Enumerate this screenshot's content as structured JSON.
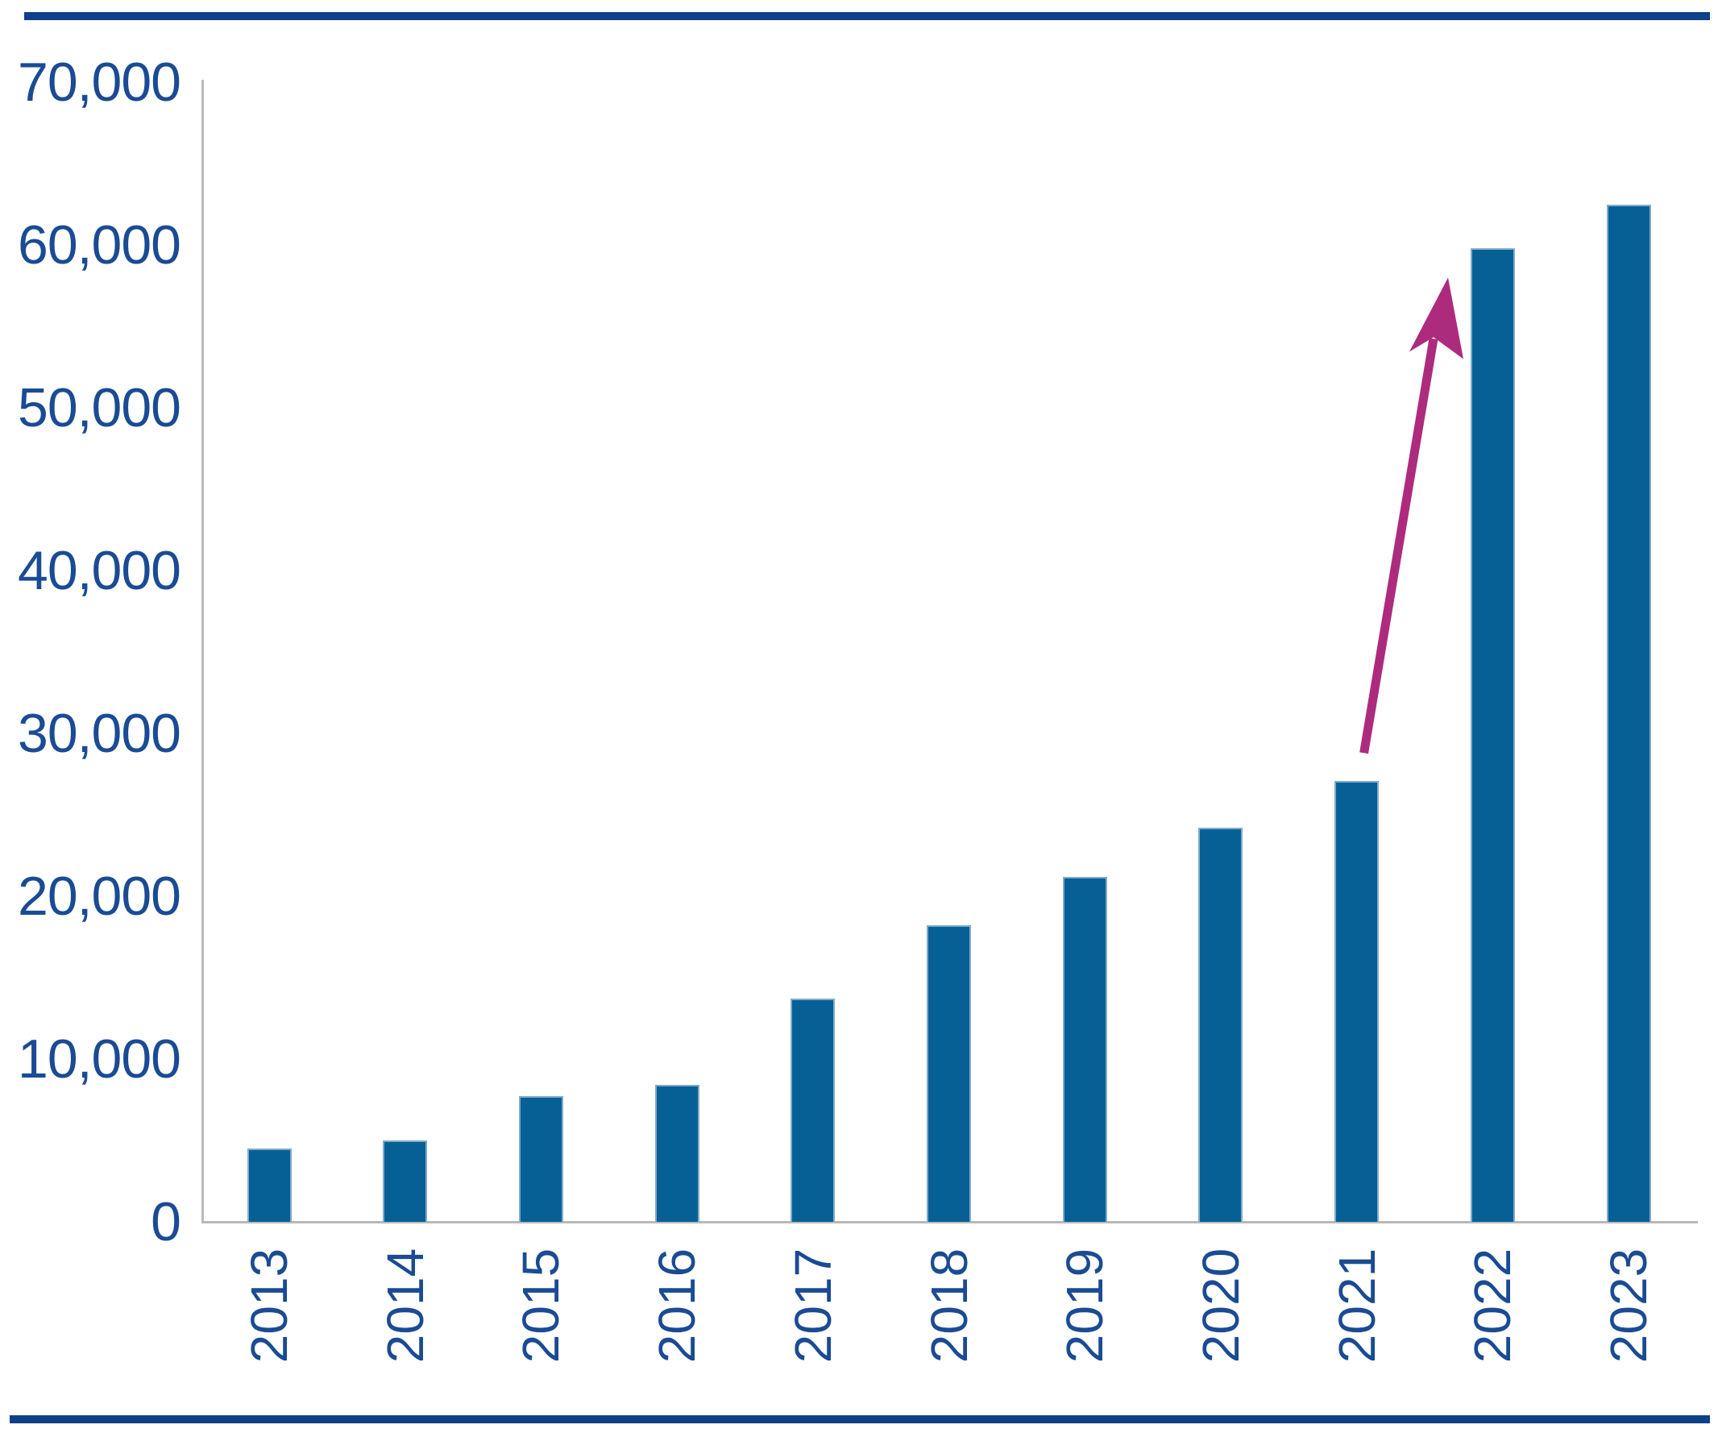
{
  "chart_data": {
    "type": "bar",
    "title": "",
    "xlabel": "",
    "ylabel": "",
    "categories": [
      "2013",
      "2014",
      "2015",
      "2016",
      "2017",
      "2018",
      "2019",
      "2020",
      "2021",
      "2022",
      "2023"
    ],
    "values": [
      4500,
      5000,
      7700,
      8400,
      13700,
      18200,
      21200,
      24200,
      27100,
      59800,
      62500
    ],
    "ylim": [
      0,
      70000
    ],
    "ytick_interval": 10000,
    "ytick_labels": [
      "0",
      "10,000",
      "20,000",
      "30,000",
      "40,000",
      "50,000",
      "60,000",
      "70,000"
    ],
    "grid": false,
    "legend": "none",
    "annotations": [
      {
        "type": "arrow",
        "name": "surge-arrow",
        "description": "magenta arrow from top of 2021 bar pointing up to top of 2022 bar",
        "from": {
          "category": "2021",
          "value": 28800
        },
        "to": {
          "category": "2022",
          "value": 58000
        },
        "color": "#ad2b7d"
      }
    ]
  },
  "style": {
    "bar_color": "#076095",
    "label_color": "#1a4b94",
    "rule_color": "#0f4189",
    "axis_line_color": "#b9b9b9",
    "arrow_color": "#ad2b7d",
    "background_color": "#ffffff"
  }
}
